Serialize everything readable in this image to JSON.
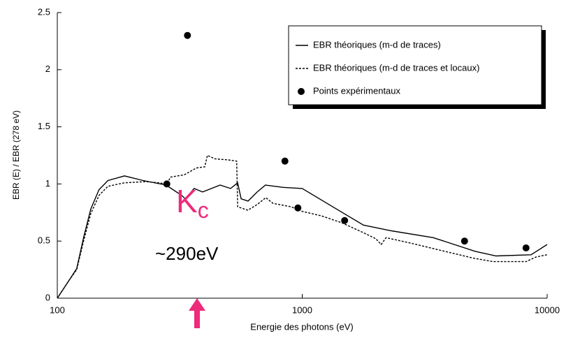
{
  "chart_data": {
    "type": "line",
    "xlabel": "Energie des photons (eV)",
    "ylabel": "EBR (E) / EBR (278 eV)",
    "xscale": "log",
    "xlim": [
      100,
      10000
    ],
    "xticks": [
      100,
      1000,
      10000
    ],
    "ylim": [
      0,
      2.5
    ],
    "yticks": [
      0,
      0.5,
      1,
      1.5,
      2,
      2.5
    ],
    "legend": "upper right",
    "series": [
      {
        "name": "EBR théoriques (m-d de traces)",
        "style": "solid",
        "color": "#000000",
        "x": [
          100,
          112,
          120,
          128,
          137,
          148,
          161,
          188,
          224,
          278,
          322,
          333,
          362,
          392,
          462,
          510,
          545,
          563,
          601,
          655,
          708,
          835,
          1000,
          1458,
          1778,
          2312,
          3428,
          5085,
          6190,
          8600,
          10000
        ],
        "values": [
          0,
          0.16,
          0.26,
          0.53,
          0.78,
          0.95,
          1.03,
          1.07,
          1.03,
          0.99,
          0.9,
          0.87,
          0.96,
          0.93,
          0.99,
          0.96,
          1.01,
          0.87,
          0.85,
          0.93,
          0.99,
          0.97,
          0.96,
          0.75,
          0.64,
          0.59,
          0.53,
          0.41,
          0.37,
          0.38,
          0.47
        ]
      },
      {
        "name": "EBR théoriques (m-d de traces et locaux)",
        "style": "dashed",
        "color": "#000000",
        "x": [
          100,
          112,
          120,
          128,
          137,
          148,
          161,
          188,
          230,
          260,
          280,
          290,
          330,
          370,
          400,
          410,
          440,
          500,
          540,
          545,
          600,
          655,
          710,
          760,
          900,
          1000,
          1200,
          1450,
          1750,
          2000,
          2100,
          2200,
          2800,
          3500,
          5000,
          6000,
          8200,
          9000,
          10000
        ],
        "values": [
          0,
          0.16,
          0.25,
          0.5,
          0.74,
          0.9,
          0.98,
          1.01,
          1.02,
          1.01,
          1.0,
          1.06,
          1.08,
          1.14,
          1.15,
          1.25,
          1.22,
          1.21,
          1.2,
          0.8,
          0.77,
          0.82,
          0.88,
          0.83,
          0.8,
          0.76,
          0.72,
          0.66,
          0.58,
          0.52,
          0.47,
          0.53,
          0.48,
          0.43,
          0.35,
          0.32,
          0.32,
          0.36,
          0.38
        ]
      },
      {
        "name": "Points expérimentaux",
        "style": "markers",
        "color": "#000000",
        "x": [
          280,
          340,
          850,
          960,
          1490,
          4600,
          8200
        ],
        "values": [
          1.0,
          2.3,
          1.2,
          0.79,
          0.68,
          0.5,
          0.44
        ]
      }
    ],
    "annotations": [
      {
        "text": "K",
        "sub": "c",
        "color": "#ee2a7b"
      },
      {
        "text": "~290eV",
        "color": "#ee2a7b"
      }
    ]
  }
}
